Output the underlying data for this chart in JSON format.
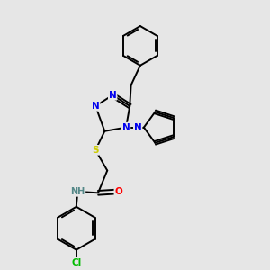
{
  "bg_color": "#e6e6e6",
  "atom_colors": {
    "N": "#0000ee",
    "O": "#ff0000",
    "S": "#cccc00",
    "Cl": "#00bb00",
    "C": "#000000",
    "H": "#558888"
  },
  "bond_color": "#000000",
  "bond_width": 1.4,
  "font_size_atom": 7.5
}
